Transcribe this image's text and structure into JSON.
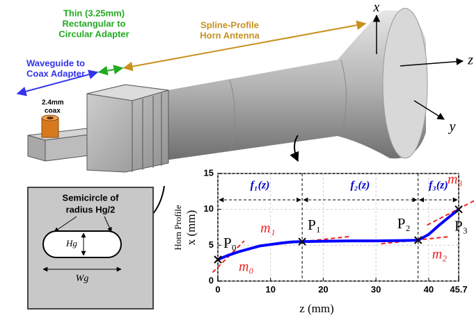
{
  "annotations": {
    "waveguide_adapter": [
      "Waveguide to",
      "Coax Adapter"
    ],
    "thin_adapter": [
      "Thin (3.25mm)",
      "Rectangular to",
      "Circular Adapter"
    ],
    "horn": [
      "Spline-Profile",
      "Horn Antenna"
    ],
    "coax": [
      "2.4mm",
      "coax"
    ],
    "axes": [
      "x",
      "z",
      "y"
    ]
  },
  "cross_section": {
    "title": [
      "Semicircle of",
      "radius Hg/2"
    ],
    "height": "Hg",
    "width": "Wg"
  },
  "chart_data": {
    "type": "line",
    "x_label": "z (mm)",
    "y_label": [
      "Horn Profile",
      "x (mm)"
    ],
    "x": [
      0,
      2,
      4,
      6,
      8,
      10,
      12,
      14,
      16,
      20,
      25,
      30,
      35,
      38,
      40,
      42,
      44,
      45.7
    ],
    "values": [
      3,
      3.6,
      4.1,
      4.5,
      4.9,
      5.1,
      5.3,
      5.45,
      5.5,
      5.55,
      5.6,
      5.6,
      5.65,
      5.7,
      6.5,
      7.8,
      9,
      10
    ],
    "color": "#0000ff",
    "xlim": [
      0,
      45.7
    ],
    "ylim": [
      0,
      15
    ],
    "xticks": [
      0,
      10,
      20,
      30,
      40,
      45.7
    ],
    "yticks": [
      0,
      5,
      10,
      15
    ],
    "grid": true,
    "points": [
      {
        "label": "P₀",
        "x": 0,
        "y": 3
      },
      {
        "label": "P₁",
        "x": 16,
        "y": 5.5
      },
      {
        "label": "P₂",
        "x": 38,
        "y": 5.7
      },
      {
        "label": "P₃",
        "x": 45.7,
        "y": 10
      }
    ],
    "slopes": [
      "m₀",
      "m₁",
      "m₂",
      "m₃"
    ],
    "regions": [
      "f₁(z)",
      "f₂(z)",
      "f₃(z)"
    ]
  }
}
